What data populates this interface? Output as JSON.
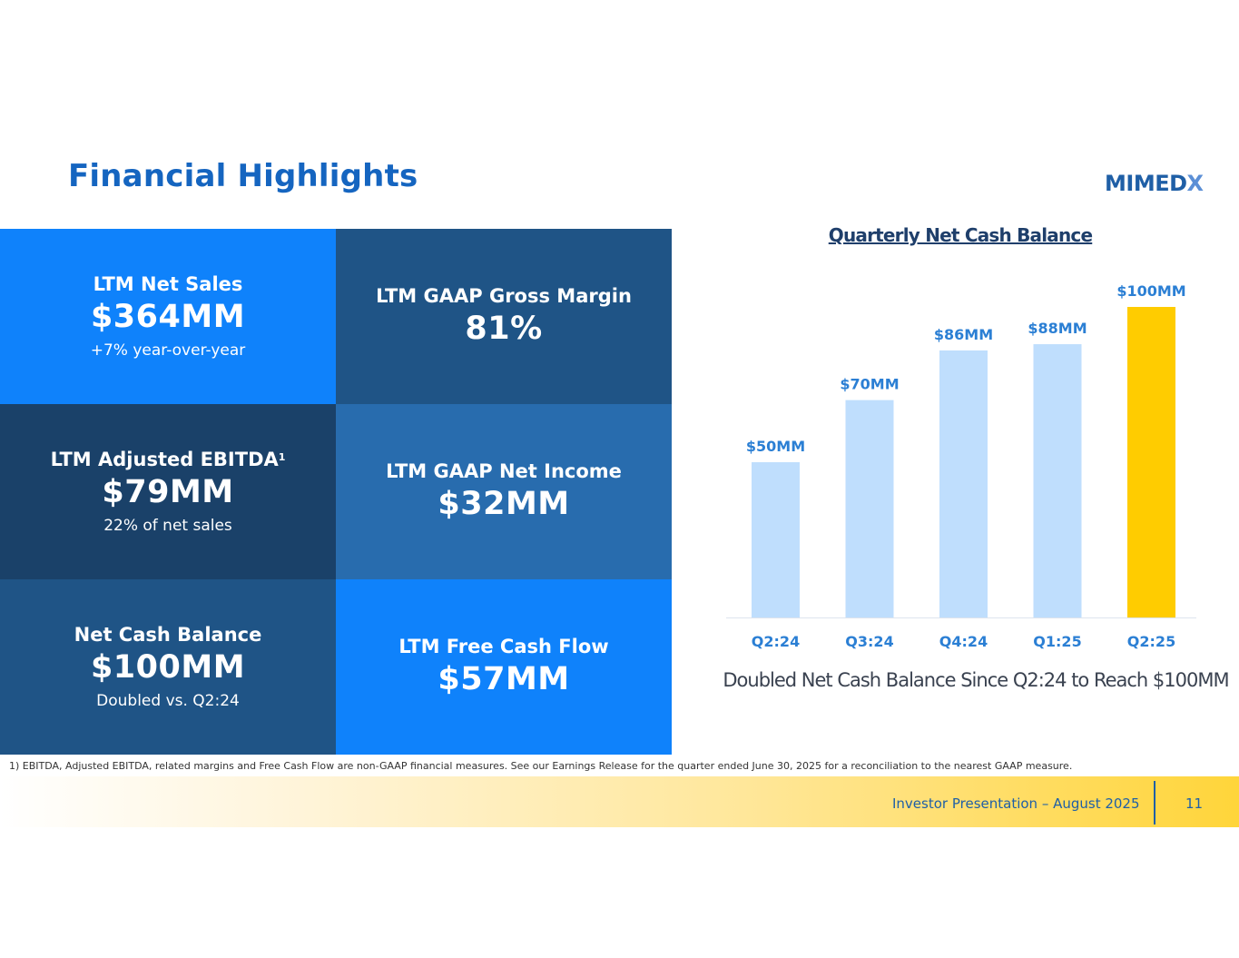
{
  "title": "Financial Highlights",
  "logo": {
    "text": "MIMEDX",
    "color": "#1f5fa6",
    "x_color": "#5b8fd6"
  },
  "tiles": [
    {
      "label": "LTM Net Sales",
      "sup": "",
      "value": "$364MM",
      "note": "+7% year-over-year",
      "color": "#0f82fb"
    },
    {
      "label": "LTM GAAP Gross Margin",
      "sup": "",
      "value": "81%",
      "note": "",
      "color": "#1f5486"
    },
    {
      "label": "LTM Adjusted EBITDA",
      "sup": "1",
      "value": "$79MM",
      "note": "22% of net sales",
      "color": "#1a4169"
    },
    {
      "label": "LTM GAAP Net Income",
      "sup": "",
      "value": "$32MM",
      "note": "",
      "color": "#286cae"
    },
    {
      "label": "Net Cash Balance",
      "sup": "",
      "value": "$100MM",
      "note": "Doubled vs. Q2:24",
      "color": "#1f5486"
    },
    {
      "label": "LTM Free Cash Flow",
      "sup": "",
      "value": "$57MM",
      "note": "",
      "color": "#0f82fb"
    }
  ],
  "chart_data": {
    "type": "bar",
    "title": "Quarterly Net Cash Balance",
    "categories": [
      "Q2:24",
      "Q3:24",
      "Q4:24",
      "Q1:25",
      "Q2:25"
    ],
    "values": [
      50,
      70,
      86,
      88,
      100
    ],
    "labels": [
      "$50MM",
      "$70MM",
      "$86MM",
      "$88MM",
      "$100MM"
    ],
    "unit": "$MM",
    "colors": [
      "#bfdefd",
      "#bfdefd",
      "#bfdefd",
      "#bfdefd",
      "#ffcc00"
    ],
    "label_color": "#2b7fd4",
    "ylim": [
      0,
      100
    ],
    "grid": false,
    "legend": "none"
  },
  "chart_caption": "Doubled Net Cash Balance Since Q2:24 to Reach $100MM",
  "footnote": "1) EBITDA, Adjusted EBITDA, related margins and Free Cash Flow are non-GAAP financial measures. See our Earnings Release for the quarter ended June 30, 2025 for a reconciliation to the nearest GAAP measure.",
  "footer": {
    "text": "Investor Presentation – August 2025",
    "page": "11"
  }
}
